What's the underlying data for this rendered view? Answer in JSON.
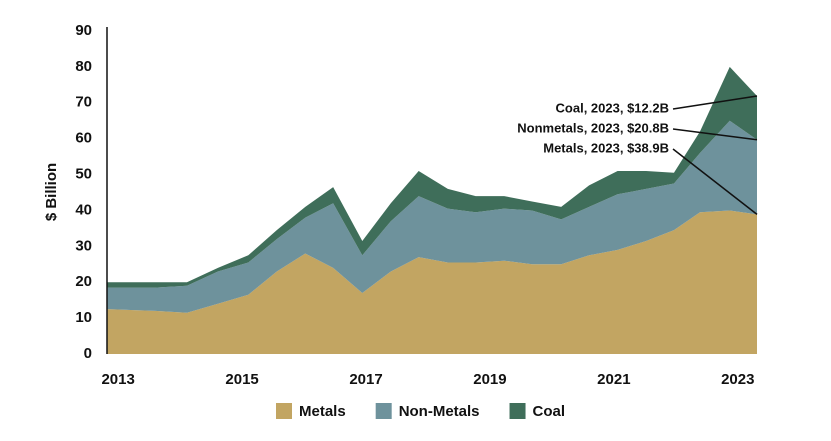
{
  "chart_data": {
    "type": "stacked-area",
    "y_label": "$ Billion",
    "x": [
      2012.82,
      2013.6,
      2014.11,
      2014.61,
      2015.1,
      2015.56,
      2016.02,
      2016.47,
      2016.94,
      2017.4,
      2017.85,
      2018.32,
      2018.77,
      2019.23,
      2019.68,
      2020.15,
      2020.6,
      2021.06,
      2021.52,
      2021.97,
      2022.39,
      2022.87,
      2023.31
    ],
    "series": [
      {
        "name": "Metals",
        "color": "#c2a562",
        "values": [
          12.5,
          12,
          11.5,
          14,
          16.5,
          23,
          28,
          24,
          17,
          23,
          27,
          25.5,
          25.5,
          26,
          25,
          25,
          27.5,
          29,
          31.5,
          34.5,
          39.5,
          40,
          38.9
        ]
      },
      {
        "name": "Non-Metals",
        "color": "#6e929c",
        "values": [
          6,
          6.5,
          7.5,
          9,
          9,
          9,
          10,
          18,
          10.5,
          14,
          17,
          15,
          14,
          14.5,
          15,
          12.5,
          13.5,
          15.5,
          14.5,
          13,
          16.5,
          25,
          20.8
        ]
      },
      {
        "name": "Coal",
        "color": "#3f6e5a",
        "values": [
          1.5,
          1.5,
          1,
          1,
          2,
          2.5,
          3,
          4.5,
          4,
          5,
          7,
          5.5,
          4.5,
          3.5,
          2.5,
          3.5,
          6,
          6.5,
          5,
          3,
          6,
          15,
          12.2
        ]
      }
    ],
    "annotations": [
      "Coal, 2023, $12.2B",
      "Nonmetals, 2023, $20.8B",
      "Metals, 2023, $38.9B"
    ],
    "xlim": [
      2012.82,
      2023.31
    ],
    "xticks": [
      2013,
      2015,
      2017,
      2019,
      2021,
      2023
    ],
    "ylim": [
      0,
      90
    ],
    "yticks": [
      0,
      10,
      20,
      30,
      40,
      50,
      60,
      70,
      80,
      90
    ],
    "legend": "bottom"
  }
}
